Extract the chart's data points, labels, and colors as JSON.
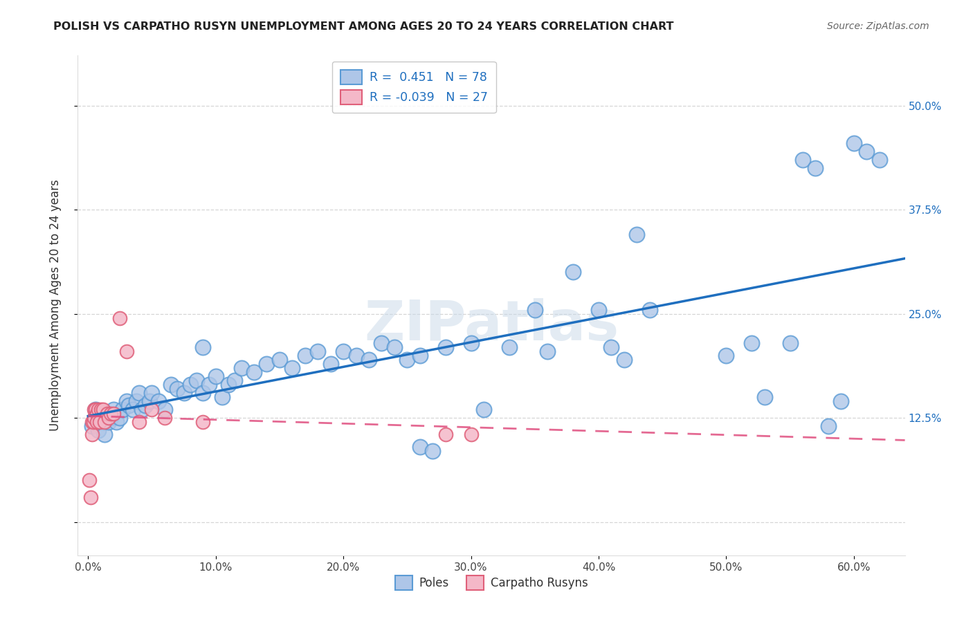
{
  "title": "POLISH VS CARPATHO RUSYN UNEMPLOYMENT AMONG AGES 20 TO 24 YEARS CORRELATION CHART",
  "source": "Source: ZipAtlas.com",
  "ylabel": "Unemployment Among Ages 20 to 24 years",
  "x_ticks": [
    0.0,
    0.1,
    0.2,
    0.3,
    0.4,
    0.5,
    0.6
  ],
  "x_tick_labels": [
    "0.0%",
    "10.0%",
    "20.0%",
    "30.0%",
    "40.0%",
    "50.0%",
    "60.0%"
  ],
  "y_ticks": [
    0.0,
    0.125,
    0.25,
    0.375,
    0.5
  ],
  "y_tick_labels_right": [
    "",
    "12.5%",
    "25.0%",
    "37.5%",
    "50.0%"
  ],
  "xlim": [
    -0.008,
    0.64
  ],
  "ylim": [
    -0.04,
    0.56
  ],
  "poles_color": "#aec6e8",
  "poles_edge_color": "#5b9bd5",
  "rusyns_color": "#f4b8c8",
  "rusyns_edge_color": "#e0607a",
  "poles_line_color": "#1f6fbf",
  "rusyns_line_color": "#e05080",
  "legend_pole_R": "0.451",
  "legend_pole_N": "78",
  "legend_rusyn_R": "-0.039",
  "legend_rusyn_N": "27",
  "legend_labels": [
    "Poles",
    "Carpatho Rusyns"
  ],
  "watermark": "ZIPatlas",
  "poles_x": [
    0.003,
    0.005,
    0.006,
    0.007,
    0.008,
    0.01,
    0.012,
    0.013,
    0.015,
    0.016,
    0.018,
    0.02,
    0.022,
    0.025,
    0.027,
    0.03,
    0.032,
    0.035,
    0.038,
    0.04,
    0.042,
    0.045,
    0.048,
    0.05,
    0.055,
    0.06,
    0.065,
    0.07,
    0.075,
    0.08,
    0.085,
    0.09,
    0.095,
    0.1,
    0.105,
    0.11,
    0.115,
    0.12,
    0.13,
    0.14,
    0.15,
    0.16,
    0.17,
    0.18,
    0.19,
    0.2,
    0.21,
    0.22,
    0.23,
    0.24,
    0.25,
    0.26,
    0.27,
    0.28,
    0.3,
    0.31,
    0.33,
    0.35,
    0.36,
    0.38,
    0.4,
    0.41,
    0.42,
    0.43,
    0.44,
    0.5,
    0.52,
    0.53,
    0.55,
    0.56,
    0.57,
    0.58,
    0.59,
    0.6,
    0.61,
    0.62,
    0.09,
    0.26
  ],
  "poles_y": [
    0.115,
    0.12,
    0.135,
    0.125,
    0.11,
    0.13,
    0.12,
    0.105,
    0.13,
    0.12,
    0.125,
    0.135,
    0.12,
    0.125,
    0.135,
    0.145,
    0.14,
    0.135,
    0.145,
    0.155,
    0.135,
    0.14,
    0.145,
    0.155,
    0.145,
    0.135,
    0.165,
    0.16,
    0.155,
    0.165,
    0.17,
    0.155,
    0.165,
    0.175,
    0.15,
    0.165,
    0.17,
    0.185,
    0.18,
    0.19,
    0.195,
    0.185,
    0.2,
    0.205,
    0.19,
    0.205,
    0.2,
    0.195,
    0.215,
    0.21,
    0.195,
    0.09,
    0.085,
    0.21,
    0.215,
    0.135,
    0.21,
    0.255,
    0.205,
    0.3,
    0.255,
    0.21,
    0.195,
    0.345,
    0.255,
    0.2,
    0.215,
    0.15,
    0.215,
    0.435,
    0.425,
    0.115,
    0.145,
    0.455,
    0.445,
    0.435,
    0.21,
    0.2
  ],
  "rusyns_x": [
    0.001,
    0.002,
    0.003,
    0.003,
    0.004,
    0.005,
    0.005,
    0.006,
    0.007,
    0.007,
    0.008,
    0.009,
    0.01,
    0.012,
    0.013,
    0.015,
    0.016,
    0.018,
    0.02,
    0.025,
    0.03,
    0.04,
    0.05,
    0.06,
    0.09,
    0.28,
    0.3
  ],
  "rusyns_y": [
    0.05,
    0.03,
    0.12,
    0.105,
    0.12,
    0.135,
    0.125,
    0.135,
    0.13,
    0.12,
    0.135,
    0.12,
    0.135,
    0.135,
    0.12,
    0.13,
    0.125,
    0.13,
    0.13,
    0.245,
    0.205,
    0.12,
    0.135,
    0.125,
    0.12,
    0.105,
    0.105
  ]
}
